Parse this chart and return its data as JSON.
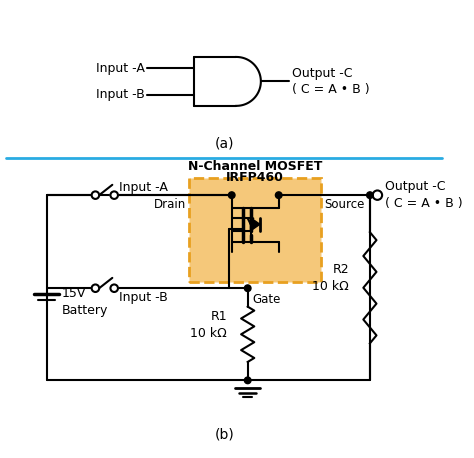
{
  "bg_color": "#ffffff",
  "divider_color": "#29abe2",
  "mosfet_box_color": "#e8a020",
  "mosfet_box_fill": "#f5c87a",
  "line_color": "#000000",
  "label_a": "Input -A",
  "label_b": "Input -B",
  "label_out_top": "Output -C",
  "label_eq_top": "( C = A • B )",
  "label_a_circ": "Input -A",
  "label_b_circ": "Input -B",
  "label_out_circ": "Output -C",
  "label_eq_circ": "( C = A • B )",
  "label_drain": "Drain",
  "label_source": "Source",
  "label_gate": "Gate",
  "label_mosfet1": "N-Channel MOSFET",
  "label_mosfet2": "IRFP460",
  "label_battery": "15V\nBattery",
  "label_r1": "R1\n10 kΩ",
  "label_r2": "R2\n10 kΩ",
  "label_a_caption": "(a)",
  "label_b_caption": "(b)"
}
